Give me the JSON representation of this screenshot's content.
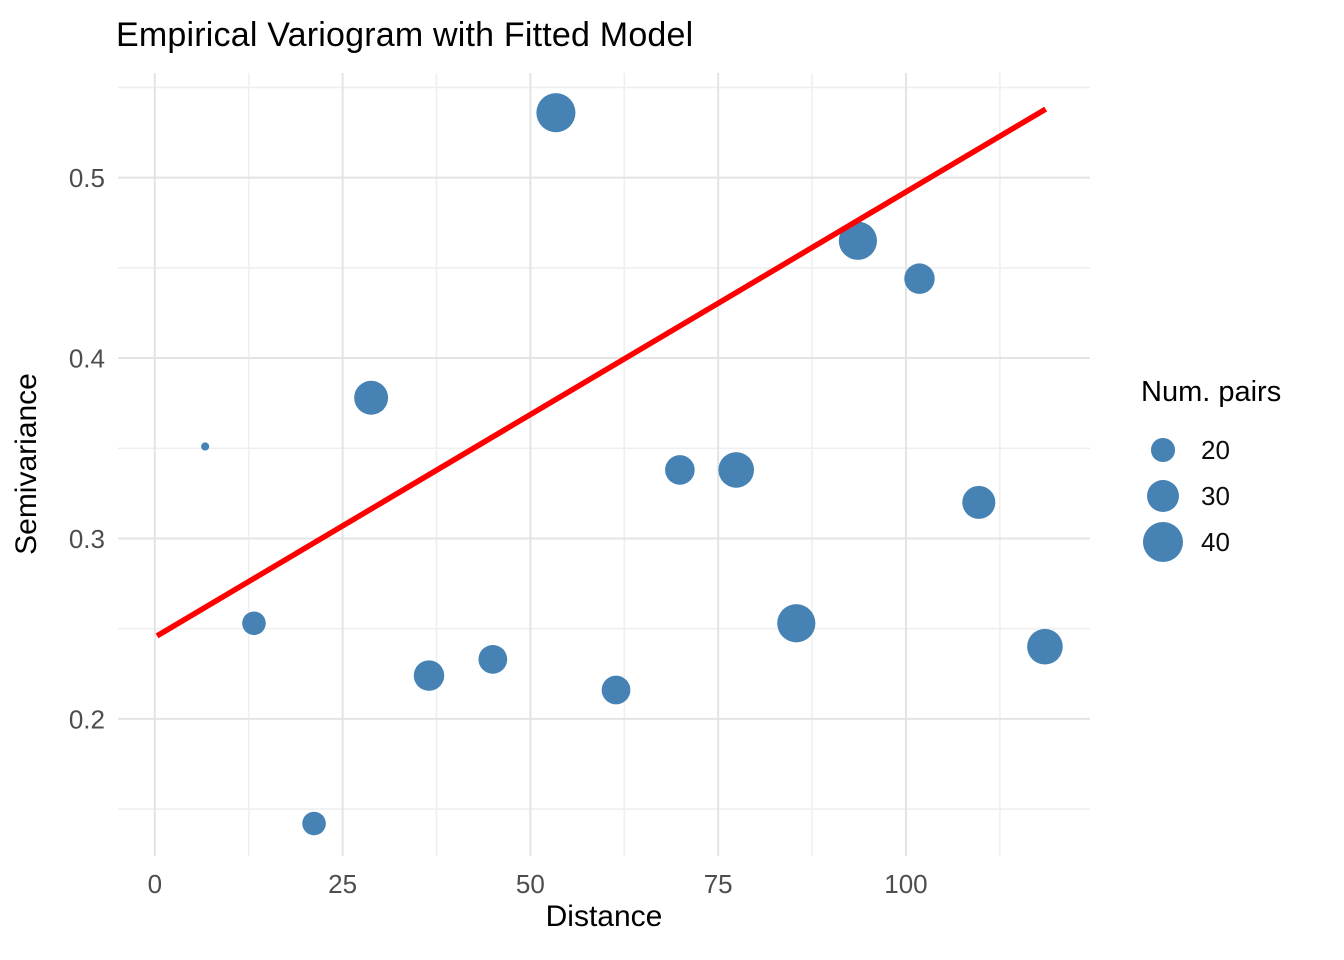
{
  "chart_data": {
    "type": "scatter",
    "title": "Empirical Variogram with Fitted Model",
    "xlabel": "Distance",
    "ylabel": "Semivariance",
    "grid": true,
    "legend": {
      "title": "Num. pairs",
      "position": "right",
      "entries": [
        20,
        30,
        40
      ]
    },
    "xlim": [
      -4.9,
      124.5
    ],
    "ylim": [
      0.124,
      0.558
    ],
    "x_ticks": [
      0,
      25,
      50,
      75,
      100
    ],
    "x_minor_ticks": [
      12.5,
      37.5,
      62.5,
      87.5,
      112.5
    ],
    "y_ticks": [
      0.2,
      0.3,
      0.4,
      0.5
    ],
    "y_minor_ticks": [
      0.15,
      0.25,
      0.35,
      0.45,
      0.55
    ],
    "points": [
      {
        "distance": 6.7,
        "semivariance": 0.351,
        "num_pairs": 2
      },
      {
        "distance": 13.2,
        "semivariance": 0.253,
        "num_pairs": 20
      },
      {
        "distance": 21.2,
        "semivariance": 0.142,
        "num_pairs": 20
      },
      {
        "distance": 28.8,
        "semivariance": 0.378,
        "num_pairs": 32
      },
      {
        "distance": 36.5,
        "semivariance": 0.224,
        "num_pairs": 28
      },
      {
        "distance": 45.0,
        "semivariance": 0.233,
        "num_pairs": 26
      },
      {
        "distance": 53.4,
        "semivariance": 0.536,
        "num_pairs": 38
      },
      {
        "distance": 61.4,
        "semivariance": 0.216,
        "num_pairs": 26
      },
      {
        "distance": 69.9,
        "semivariance": 0.338,
        "num_pairs": 27
      },
      {
        "distance": 77.4,
        "semivariance": 0.338,
        "num_pairs": 34
      },
      {
        "distance": 85.4,
        "semivariance": 0.253,
        "num_pairs": 37
      },
      {
        "distance": 93.6,
        "semivariance": 0.465,
        "num_pairs": 37
      },
      {
        "distance": 101.8,
        "semivariance": 0.444,
        "num_pairs": 28
      },
      {
        "distance": 109.7,
        "semivariance": 0.32,
        "num_pairs": 31
      },
      {
        "distance": 118.5,
        "semivariance": 0.24,
        "num_pairs": 34
      }
    ],
    "fitted_line": {
      "x_start": 0.3,
      "y_start": 0.246,
      "x_end": 118.6,
      "y_end": 0.538,
      "intercept": 0.246,
      "slope": 0.00247
    },
    "size_scale": {
      "radius_px_at_20": 11.8,
      "radius_px_at_40": 20.4
    },
    "colors": {
      "point": "#4682B4",
      "line": "#FF0000",
      "grid_major": "#E4E4E4",
      "grid_minor": "#EFEFEF",
      "tick_text": "#4D4D4D",
      "title_text": "#000000",
      "background": "#FFFFFF"
    }
  }
}
